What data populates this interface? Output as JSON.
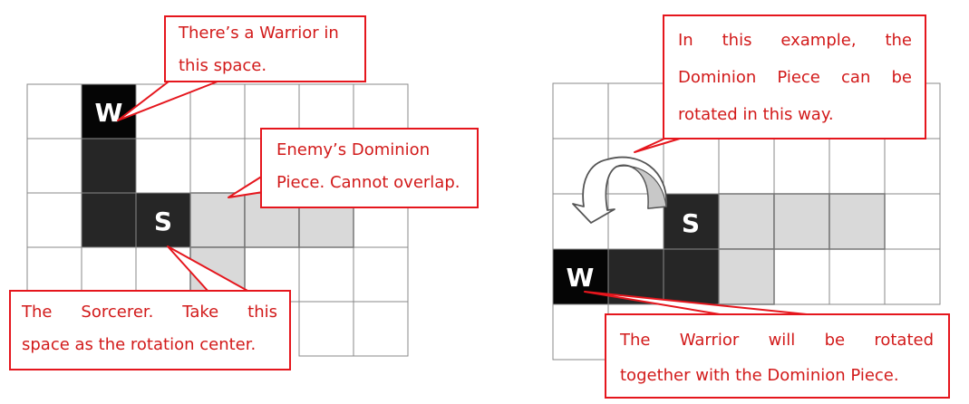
{
  "colors": {
    "callout_border": "#e5161d",
    "callout_text": "#d21a1a",
    "grid_line": "#8a8a8a",
    "piece_dark": "#262626",
    "piece_black": "#050505",
    "dominion_gray": "#d9d9d9"
  },
  "left_example": {
    "warrior_label": "W",
    "sorcerer_label": "S",
    "callout_warrior": {
      "line1": "There’s a Warrior in",
      "line2": "this space."
    },
    "callout_enemy": {
      "line1": "Enemy’s Dominion",
      "line2": "Piece. Cannot overlap."
    },
    "callout_sorcerer": {
      "line1": "The Sorcerer. Take this",
      "line2": "space as the rotation center."
    }
  },
  "right_example": {
    "warrior_label": "W",
    "sorcerer_label": "S",
    "callout_example": {
      "line1": "In this example, the",
      "line2": "Dominion Piece can be",
      "line3": "rotated in this way."
    },
    "callout_warrior": {
      "line1": "The Warrior will be rotated",
      "line2": "together with the Dominion Piece."
    },
    "rotation_arrow_icon": "curved-rotation-arrow-icon"
  }
}
